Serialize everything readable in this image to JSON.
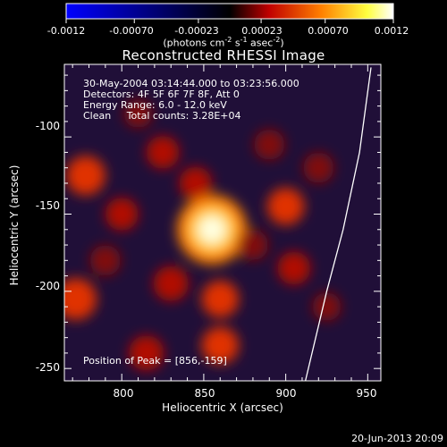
{
  "colorbar": {
    "ticks": [
      "-0.0012",
      "-0.00070",
      "-0.00023",
      "0.00023",
      "0.00070",
      "0.0012"
    ],
    "unit_label_main": "(photons cm",
    "unit_exp1": "-2",
    "unit_mid": " s",
    "unit_exp2": "-1",
    "unit_mid2": " asec",
    "unit_exp3": "-2",
    "unit_close": ")",
    "range": [
      -0.0012,
      0.0012
    ],
    "colors": [
      "#0000ff",
      "#000000",
      "#c00000",
      "#ff8000",
      "#ffff40",
      "#ffffff"
    ]
  },
  "chart_data": {
    "type": "heatmap",
    "title": "Reconstructed RHESSI Image",
    "xlabel": "Heliocentric X (arcsec)",
    "ylabel": "Heliocentric Y (arcsec)",
    "xlim": [
      765,
      958
    ],
    "ylim": [
      -258,
      -53
    ],
    "xticks": [
      800,
      850,
      900,
      950
    ],
    "yticks": [
      -100,
      -150,
      -200,
      -250
    ],
    "annotations": {
      "time": "30-May-2004 03:14:44.000 to 03:23:56.000",
      "detectors": "Detectors: 4F 5F 6F 7F 8F, Att 0",
      "energy": "Energy Range: 6.0 - 12.0 keV",
      "clean": "Clean     Total counts: 3.28E+04",
      "peak": "Position of Peak = [856,-159]"
    },
    "peak": [
      856,
      -159
    ],
    "sources": [
      {
        "x": 855,
        "y": -160,
        "intensity": 1.0
      },
      {
        "x": 845,
        "y": -130,
        "intensity": 0.35
      },
      {
        "x": 778,
        "y": -125,
        "intensity": 0.5
      },
      {
        "x": 772,
        "y": -205,
        "intensity": 0.55
      },
      {
        "x": 800,
        "y": -150,
        "intensity": 0.35
      },
      {
        "x": 825,
        "y": -110,
        "intensity": 0.35
      },
      {
        "x": 890,
        "y": -105,
        "intensity": 0.3
      },
      {
        "x": 900,
        "y": -145,
        "intensity": 0.45
      },
      {
        "x": 920,
        "y": -120,
        "intensity": 0.3
      },
      {
        "x": 905,
        "y": -185,
        "intensity": 0.35
      },
      {
        "x": 860,
        "y": -205,
        "intensity": 0.45
      },
      {
        "x": 830,
        "y": -195,
        "intensity": 0.4
      },
      {
        "x": 860,
        "y": -235,
        "intensity": 0.45
      },
      {
        "x": 815,
        "y": -240,
        "intensity": 0.4
      },
      {
        "x": 790,
        "y": -180,
        "intensity": 0.3
      },
      {
        "x": 880,
        "y": -170,
        "intensity": 0.3
      },
      {
        "x": 810,
        "y": -85,
        "intensity": 0.25
      },
      {
        "x": 925,
        "y": -210,
        "intensity": 0.25
      }
    ],
    "limb": [
      [
        952,
        -55
      ],
      [
        945,
        -110
      ],
      [
        935,
        -160
      ],
      [
        925,
        -200
      ],
      [
        912,
        -258
      ]
    ]
  },
  "footer": {
    "timestamp": "20-Jun-2013 20:09"
  }
}
